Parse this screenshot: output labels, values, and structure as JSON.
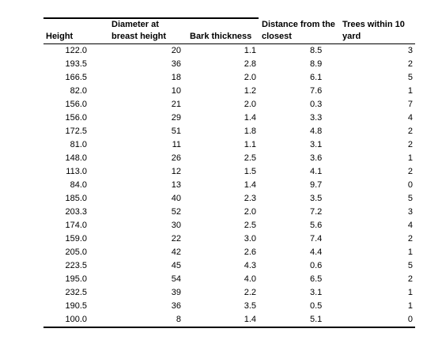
{
  "table": {
    "columns": [
      {
        "key": "height",
        "label": "Height"
      },
      {
        "key": "dbh",
        "label": "Diameter at breast height"
      },
      {
        "key": "bark",
        "label": "Bark thickness"
      },
      {
        "key": "dist",
        "label": "Distance from the closest"
      },
      {
        "key": "trees",
        "label": "Trees within 10 yard"
      }
    ],
    "header_lines": {
      "height": [
        "",
        "Height"
      ],
      "dbh": [
        "Diameter at",
        "breast height"
      ],
      "bark": [
        "",
        "Bark thickness"
      ],
      "dist": [
        "Distance from the",
        "closest"
      ],
      "trees": [
        "Trees within 10",
        "yard"
      ]
    },
    "rows": [
      [
        "122.0",
        "20",
        "1.1",
        "8.5",
        "3"
      ],
      [
        "193.5",
        "36",
        "2.8",
        "8.9",
        "2"
      ],
      [
        "166.5",
        "18",
        "2.0",
        "6.1",
        "5"
      ],
      [
        "82.0",
        "10",
        "1.2",
        "7.6",
        "1"
      ],
      [
        "156.0",
        "21",
        "2.0",
        "0.3",
        "7"
      ],
      [
        "156.0",
        "29",
        "1.4",
        "3.3",
        "4"
      ],
      [
        "172.5",
        "51",
        "1.8",
        "4.8",
        "2"
      ],
      [
        "81.0",
        "11",
        "1.1",
        "3.1",
        "2"
      ],
      [
        "148.0",
        "26",
        "2.5",
        "3.6",
        "1"
      ],
      [
        "113.0",
        "12",
        "1.5",
        "4.1",
        "2"
      ],
      [
        "84.0",
        "13",
        "1.4",
        "9.7",
        "0"
      ],
      [
        "185.0",
        "40",
        "2.3",
        "3.5",
        "5"
      ],
      [
        "203.3",
        "52",
        "2.0",
        "7.2",
        "3"
      ],
      [
        "174.0",
        "30",
        "2.5",
        "5.6",
        "4"
      ],
      [
        "159.0",
        "22",
        "3.0",
        "7.4",
        "2"
      ],
      [
        "205.0",
        "42",
        "2.6",
        "4.4",
        "1"
      ],
      [
        "223.5",
        "45",
        "4.3",
        "0.6",
        "5"
      ],
      [
        "195.0",
        "54",
        "4.0",
        "6.5",
        "2"
      ],
      [
        "232.5",
        "39",
        "2.2",
        "3.1",
        "1"
      ],
      [
        "190.5",
        "36",
        "3.5",
        "0.5",
        "1"
      ],
      [
        "100.0",
        "8",
        "1.4",
        "5.1",
        "0"
      ]
    ]
  }
}
